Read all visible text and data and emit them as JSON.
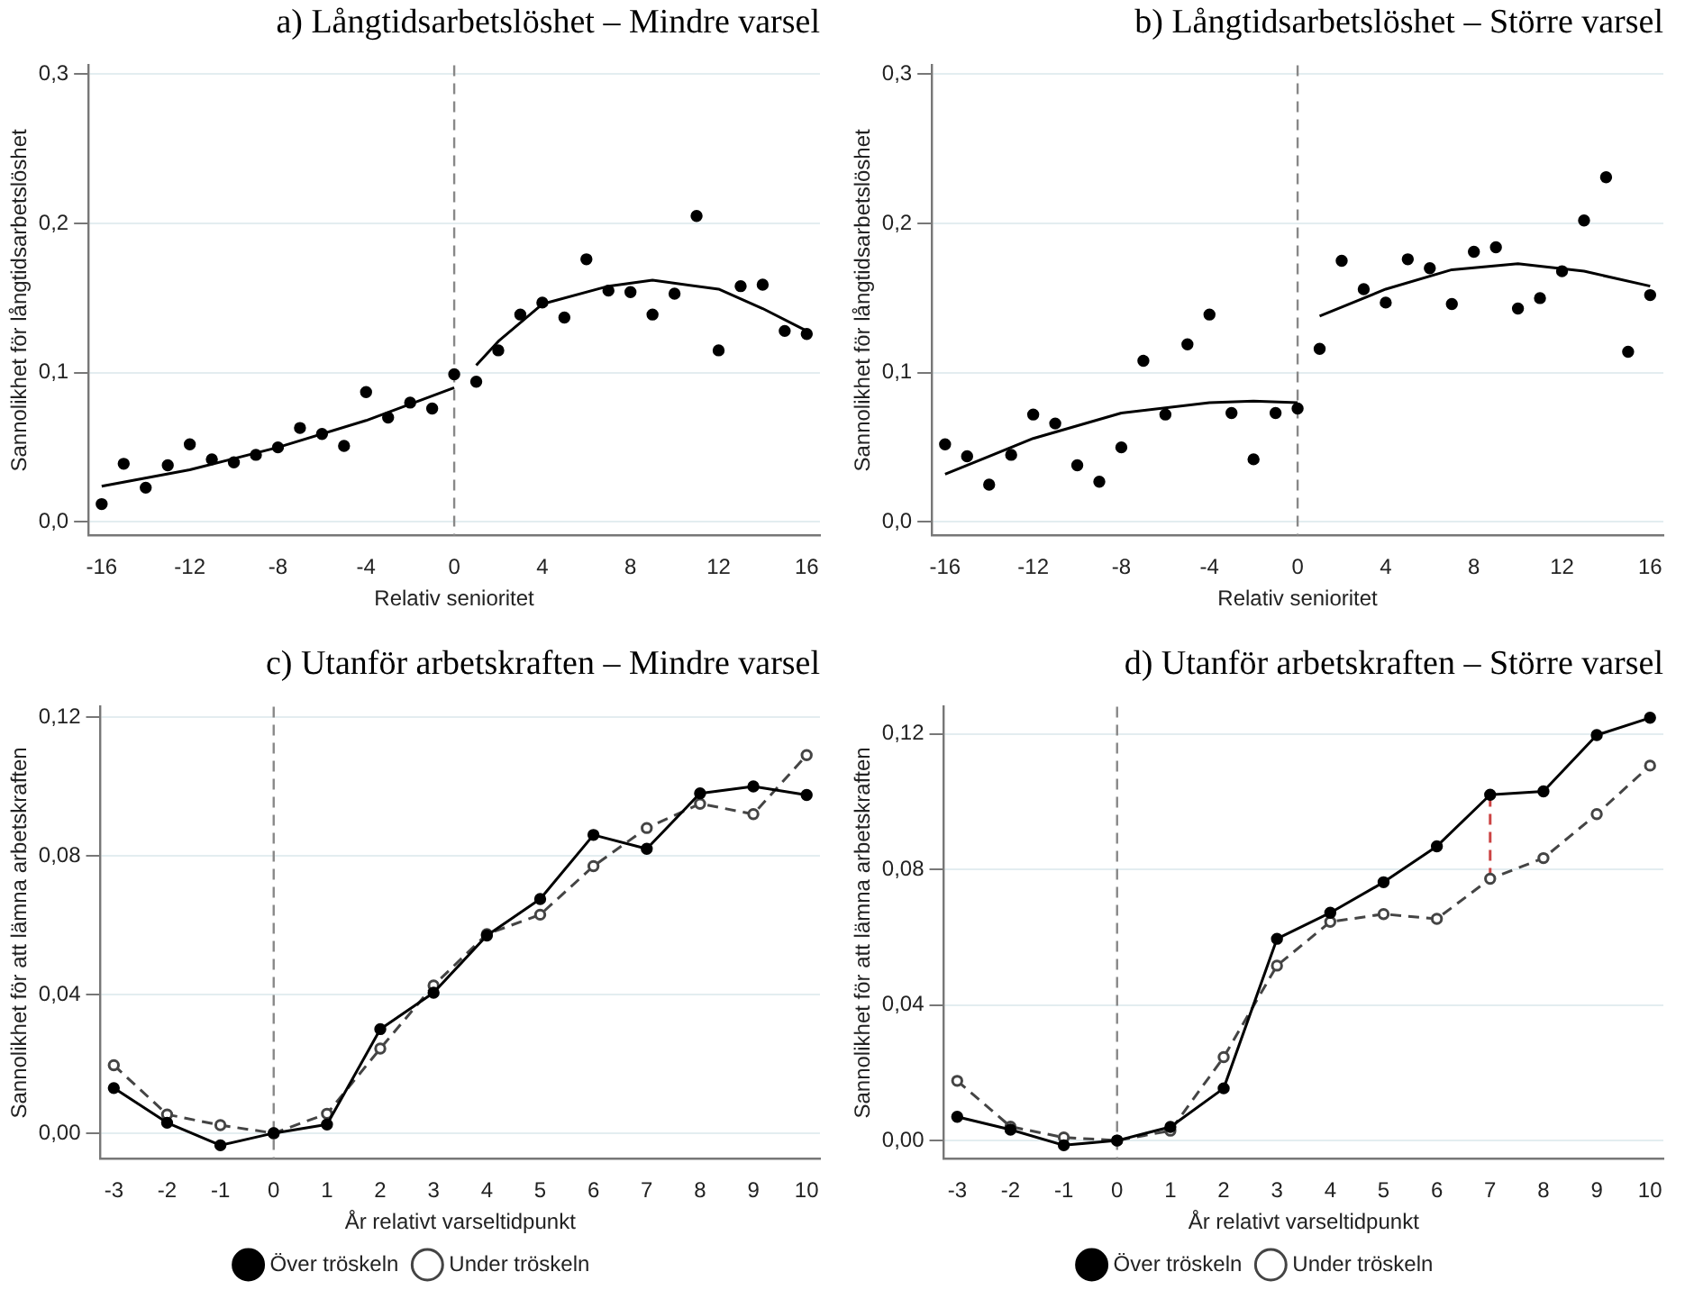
{
  "chart_data": [
    {
      "type": "scatter",
      "title": "a) Långtidsarbetslöshet – Mindre varsel",
      "xlabel": "Relativ senioritet",
      "ylabel": "Sannolikhet för långtidsarbetslöshet",
      "marker": "circle",
      "grid": "y",
      "xlim": [
        -16.6,
        16.6
      ],
      "xticks": [
        -16,
        -12,
        -8,
        -4,
        0,
        4,
        8,
        12,
        16
      ],
      "ylim": [
        -0.009,
        0.306
      ],
      "yticks": [
        {
          "value": 0,
          "label": "0,0"
        },
        {
          "value": 0.1,
          "label": "0,1"
        },
        {
          "value": 0.2,
          "label": "0,2"
        },
        {
          "value": 0.3,
          "label": "0,3"
        }
      ],
      "x": [
        -16,
        -15,
        -14,
        -13,
        -12,
        -11,
        -10,
        -9,
        -8,
        -7,
        -6,
        -5,
        -4,
        -3,
        -2,
        -1,
        0,
        1,
        2,
        3,
        4,
        5,
        6,
        7,
        8,
        9,
        10,
        11,
        12,
        13,
        14,
        15,
        16
      ],
      "series": [
        {
          "color": "#000000",
          "values": [
            0.012,
            0.039,
            0.023,
            0.038,
            0.052,
            0.042,
            0.04,
            0.045,
            0.05,
            0.063,
            0.059,
            0.051,
            0.087,
            0.07,
            0.08,
            0.076,
            0.099,
            0.094,
            0.115,
            0.139,
            0.147,
            0.137,
            0.176,
            0.155,
            0.154,
            0.139,
            0.153,
            0.205,
            0.115,
            0.158,
            0.159,
            0.128,
            0.126
          ]
        },
        {
          "type": "line",
          "marker": "none",
          "color": "#000000",
          "x": [
            -16,
            -12,
            -8,
            -4,
            0
          ],
          "values": [
            0.024,
            0.035,
            0.05,
            0.068,
            0.09
          ]
        },
        {
          "type": "line",
          "marker": "none",
          "color": "#000000",
          "x": [
            1,
            2,
            4,
            7,
            9,
            12,
            14,
            16
          ],
          "values": [
            0.105,
            0.121,
            0.146,
            0.158,
            0.162,
            0.156,
            0.143,
            0.128
          ]
        }
      ],
      "ref_lines": [
        {
          "axis": "x",
          "value": 0,
          "color": "#888888",
          "line_style": "dashed"
        }
      ]
    },
    {
      "type": "scatter",
      "title": "b) Långtidsarbetslöshet – Större varsel",
      "xlabel": "Relativ senioritet",
      "ylabel": "Sannolikhet för långtidsarbetslöshet",
      "marker": "circle",
      "grid": "y",
      "xlim": [
        -16.6,
        16.6
      ],
      "xticks": [
        -16,
        -12,
        -8,
        -4,
        0,
        4,
        8,
        12,
        16
      ],
      "ylim": [
        -0.009,
        0.306
      ],
      "yticks": [
        {
          "value": 0,
          "label": "0,0"
        },
        {
          "value": 0.1,
          "label": "0,1"
        },
        {
          "value": 0.2,
          "label": "0,2"
        },
        {
          "value": 0.3,
          "label": "0,3"
        }
      ],
      "x": [
        -16,
        -15,
        -14,
        -13,
        -12,
        -11,
        -10,
        -9,
        -8,
        -7,
        -6,
        -5,
        -4,
        -3,
        -2,
        -1,
        0,
        1,
        2,
        3,
        4,
        5,
        6,
        7,
        8,
        9,
        10,
        11,
        12,
        13,
        14,
        15,
        16
      ],
      "series": [
        {
          "color": "#000000",
          "values": [
            0.052,
            0.044,
            0.025,
            0.045,
            0.072,
            0.066,
            0.038,
            0.027,
            0.05,
            0.108,
            0.072,
            0.119,
            0.139,
            0.073,
            0.042,
            0.073,
            0.076,
            0.116,
            0.175,
            0.156,
            0.147,
            0.176,
            0.17,
            0.146,
            0.181,
            0.184,
            0.143,
            0.15,
            0.168,
            0.202,
            0.231,
            0.114,
            0.152
          ]
        },
        {
          "type": "line",
          "marker": "none",
          "color": "#000000",
          "x": [
            -16,
            -12,
            -8,
            -4,
            -2,
            0
          ],
          "values": [
            0.032,
            0.056,
            0.073,
            0.08,
            0.081,
            0.08
          ]
        },
        {
          "type": "line",
          "marker": "none",
          "color": "#000000",
          "x": [
            1,
            4,
            7,
            10,
            13,
            16
          ],
          "values": [
            0.138,
            0.156,
            0.169,
            0.173,
            0.168,
            0.158
          ]
        }
      ],
      "ref_lines": [
        {
          "axis": "x",
          "value": 0,
          "color": "#888888",
          "line_style": "dashed"
        }
      ]
    },
    {
      "type": "line",
      "title": "c) Utanför arbetskraften – Mindre varsel",
      "xlabel": "År relativt varseltidpunkt",
      "ylabel": "Sannolikhet för att lämna arbetskraften",
      "marker": "circle",
      "grid": "y",
      "legend": "bottom",
      "xlim": [
        -3.25,
        10.25
      ],
      "xticks": [
        -3,
        -2,
        -1,
        0,
        1,
        2,
        3,
        4,
        5,
        6,
        7,
        8,
        9,
        10
      ],
      "ylim": [
        -0.0074,
        0.123
      ],
      "yticks": [
        {
          "value": 0,
          "label": "0,00"
        },
        {
          "value": 0.04,
          "label": "0,04"
        },
        {
          "value": 0.08,
          "label": "0,08"
        },
        {
          "value": 0.12,
          "label": "0,12"
        }
      ],
      "x": [
        -3,
        -2,
        -1,
        0,
        1,
        2,
        3,
        4,
        5,
        6,
        7,
        8,
        9,
        10
      ],
      "series": [
        {
          "name": "Över tröskeln",
          "color": "#000000",
          "line_style": "solid",
          "values": [
            0.013,
            0.003,
            -0.0035,
            0.0,
            0.0025,
            0.03,
            0.0405,
            0.057,
            0.0675,
            0.086,
            0.082,
            0.098,
            0.1,
            0.0975
          ]
        },
        {
          "name": "Under tröskeln",
          "color": "#444444",
          "line_style": "dashed",
          "values": [
            0.0196,
            0.0054,
            0.0023,
            0.0,
            0.0056,
            0.0244,
            0.0426,
            0.0574,
            0.063,
            0.077,
            0.088,
            0.095,
            0.092,
            0.109
          ]
        }
      ],
      "ref_lines": [
        {
          "axis": "x",
          "value": 0,
          "color": "#888888",
          "line_style": "dashed"
        }
      ]
    },
    {
      "type": "line",
      "title": "d) Utanför arbetskraften – Större varsel",
      "xlabel": "År relativt varseltidpunkt",
      "ylabel": "Sannolikhet för att lämna arbetskraften",
      "marker": "circle",
      "grid": "y",
      "legend": "bottom",
      "xlim": [
        -3.25,
        10.25
      ],
      "xticks": [
        -3,
        -2,
        -1,
        0,
        1,
        2,
        3,
        4,
        5,
        6,
        7,
        8,
        9,
        10
      ],
      "ylim": [
        -0.0054,
        0.128
      ],
      "yticks": [
        {
          "value": 0,
          "label": "0,00"
        },
        {
          "value": 0.04,
          "label": "0,04"
        },
        {
          "value": 0.08,
          "label": "0,08"
        },
        {
          "value": 0.12,
          "label": "0,12"
        }
      ],
      "x": [
        -3,
        -2,
        -1,
        0,
        1,
        2,
        3,
        4,
        5,
        6,
        7,
        8,
        9,
        10
      ],
      "series": [
        {
          "name": "Över tröskeln",
          "color": "#000000",
          "line_style": "solid",
          "values": [
            0.007,
            0.0032,
            -0.0014,
            0.0,
            0.004,
            0.0154,
            0.0595,
            0.0672,
            0.0762,
            0.0868,
            0.102,
            0.103,
            0.1196,
            0.1247
          ]
        },
        {
          "name": "Under tröskeln",
          "color": "#444444",
          "line_style": "dashed",
          "values": [
            0.0176,
            0.0041,
            0.0009,
            0.0,
            0.0029,
            0.0246,
            0.0516,
            0.0645,
            0.0668,
            0.0654,
            0.0772,
            0.0833,
            0.0963,
            0.1106
          ]
        },
        {
          "type": "line",
          "marker": "none",
          "color": "#cc4444",
          "line_style": "dashed",
          "x": [
            7,
            7
          ],
          "values": [
            0.0772,
            0.102
          ]
        }
      ],
      "ref_lines": [
        {
          "axis": "x",
          "value": 0,
          "color": "#888888",
          "line_style": "dashed"
        }
      ]
    }
  ]
}
